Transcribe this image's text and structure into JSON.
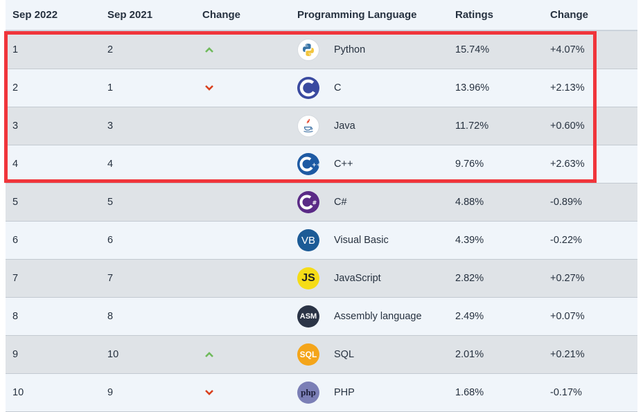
{
  "headers": [
    "Sep 2022",
    "Sep 2021",
    "Change",
    "Programming Language",
    "Ratings",
    "Change"
  ],
  "rows": [
    {
      "rank": "1",
      "prev": "2",
      "trend": "up",
      "logo": "python-logo",
      "lang": "Python",
      "rating": "15.74%",
      "change": "+4.07%"
    },
    {
      "rank": "2",
      "prev": "1",
      "trend": "down",
      "logo": "c-logo",
      "lang": "C",
      "rating": "13.96%",
      "change": "+2.13%"
    },
    {
      "rank": "3",
      "prev": "3",
      "trend": "",
      "logo": "java-logo",
      "lang": "Java",
      "rating": "11.72%",
      "change": "+0.60%"
    },
    {
      "rank": "4",
      "prev": "4",
      "trend": "",
      "logo": "cpp-logo",
      "lang": "C++",
      "rating": "9.76%",
      "change": "+2.63%"
    },
    {
      "rank": "5",
      "prev": "5",
      "trend": "",
      "logo": "csharp-logo",
      "lang": "C#",
      "rating": "4.88%",
      "change": "-0.89%"
    },
    {
      "rank": "6",
      "prev": "6",
      "trend": "",
      "logo": "vb-logo",
      "lang": "Visual Basic",
      "rating": "4.39%",
      "change": "-0.22%",
      "logo_text": "VB"
    },
    {
      "rank": "7",
      "prev": "7",
      "trend": "",
      "logo": "js-logo",
      "lang": "JavaScript",
      "rating": "2.82%",
      "change": "+0.27%",
      "logo_text": "JS"
    },
    {
      "rank": "8",
      "prev": "8",
      "trend": "",
      "logo": "asm-logo",
      "lang": "Assembly language",
      "rating": "2.49%",
      "change": "+0.07%",
      "logo_text": "ASM"
    },
    {
      "rank": "9",
      "prev": "10",
      "trend": "up",
      "logo": "sql-logo",
      "lang": "SQL",
      "rating": "2.01%",
      "change": "+0.21%",
      "logo_text": "SQL"
    },
    {
      "rank": "10",
      "prev": "9",
      "trend": "down",
      "logo": "php-logo",
      "lang": "PHP",
      "rating": "1.68%",
      "change": "-0.17%",
      "logo_text": "php"
    }
  ],
  "colors": {
    "up": "#6fba5b",
    "down": "#d9401e",
    "highlight": "#f0353b",
    "row_odd": "#dfe3e7",
    "row_even": "#f0f5fa"
  }
}
